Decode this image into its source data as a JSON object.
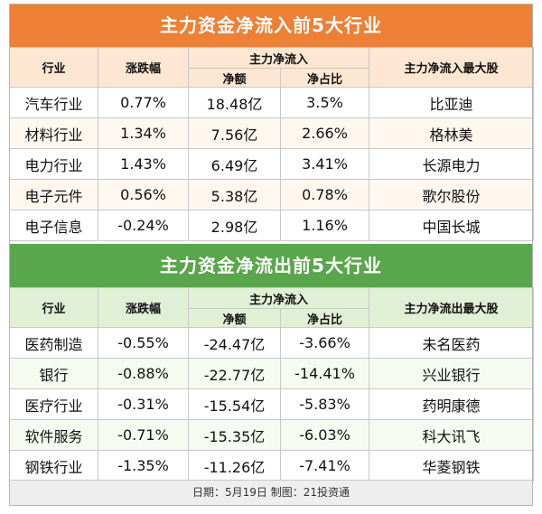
{
  "inflow": {
    "title": "主力资金净流入前5大行业",
    "headers": {
      "industry": "行业",
      "change": "涨跌幅",
      "main_net": "主力净流入",
      "net_amount": "净额",
      "net_ratio": "净占比",
      "top_stock": "主力净流入最大股"
    },
    "rows": [
      {
        "industry": "汽车行业",
        "change": "0.77%",
        "net_amount": "18.48亿",
        "net_ratio": "3.5%",
        "top_stock": "比亚迪"
      },
      {
        "industry": "材料行业",
        "change": "1.34%",
        "net_amount": "7.56亿",
        "net_ratio": "2.66%",
        "top_stock": "格林美"
      },
      {
        "industry": "电力行业",
        "change": "1.43%",
        "net_amount": "6.49亿",
        "net_ratio": "3.41%",
        "top_stock": "长源电力"
      },
      {
        "industry": "电子元件",
        "change": "0.56%",
        "net_amount": "5.38亿",
        "net_ratio": "0.78%",
        "top_stock": "歌尔股份"
      },
      {
        "industry": "电子信息",
        "change": "-0.24%",
        "net_amount": "2.98亿",
        "net_ratio": "1.16%",
        "top_stock": "中国长城"
      }
    ]
  },
  "outflow": {
    "title": "主力资金净流出前5大行业",
    "headers": {
      "industry": "行业",
      "change": "涨跌幅",
      "main_net": "主力净流入",
      "net_amount": "净额",
      "net_ratio": "净占比",
      "top_stock": "主力净流出最大股"
    },
    "rows": [
      {
        "industry": "医药制造",
        "change": "-0.55%",
        "net_amount": "-24.47亿",
        "net_ratio": "-3.66%",
        "top_stock": "未名医药"
      },
      {
        "industry": "银行",
        "change": "-0.88%",
        "net_amount": "-22.77亿",
        "net_ratio": "-14.41%",
        "top_stock": "兴业银行"
      },
      {
        "industry": "医疗行业",
        "change": "-0.31%",
        "net_amount": "-15.54亿",
        "net_ratio": "-5.83%",
        "top_stock": "药明康德"
      },
      {
        "industry": "软件服务",
        "change": "-0.71%",
        "net_amount": "-15.35亿",
        "net_ratio": "-6.03%",
        "top_stock": "科大讯飞"
      },
      {
        "industry": "钢铁行业",
        "change": "-1.35%",
        "net_amount": "-11.26亿",
        "net_ratio": "-7.41%",
        "top_stock": "华菱钢铁"
      }
    ]
  },
  "footer": "日期：5月19日 制图：21投资通",
  "colors": {
    "inflow_accent": "#ee8035",
    "outflow_accent": "#5aa64d"
  }
}
